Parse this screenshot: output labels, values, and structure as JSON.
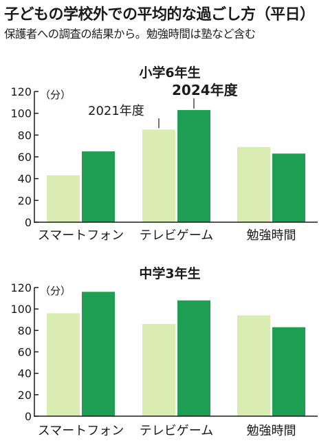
{
  "header": {
    "title": "子どもの学校外での平均的な過ごし方（平日）",
    "subtitle": "保護者への調査の結果から。勉強時間は塾など含む"
  },
  "colors": {
    "y2021": "#d9edb2",
    "y2024": "#1e9e52",
    "axis": "#1a1a1a"
  },
  "chart_data": [
    {
      "type": "bar",
      "title": "小学6年生",
      "unit_label": "（分）",
      "categories": [
        "スマートフォン",
        "テレビゲーム",
        "勉強時間"
      ],
      "series": [
        {
          "name": "2021年度",
          "values": [
            43,
            85,
            69
          ]
        },
        {
          "name": "2024年度",
          "values": [
            65,
            103,
            63
          ]
        }
      ],
      "ylim": [
        0,
        120
      ],
      "yticks": [
        "0",
        "20",
        "40",
        "60",
        "80",
        "100",
        "120"
      ],
      "grid": false,
      "legend": "annotations"
    },
    {
      "type": "bar",
      "title": "中学3年生",
      "unit_label": "（分）",
      "categories": [
        "スマートフォン",
        "テレビゲーム",
        "勉強時間"
      ],
      "series": [
        {
          "values": [
            96,
            86,
            94
          ]
        },
        {
          "values": [
            116,
            108,
            83
          ]
        }
      ],
      "ylim": [
        0,
        120
      ],
      "yticks": [
        "0",
        "20",
        "40",
        "60",
        "80",
        "100",
        "120"
      ],
      "grid": false
    }
  ]
}
